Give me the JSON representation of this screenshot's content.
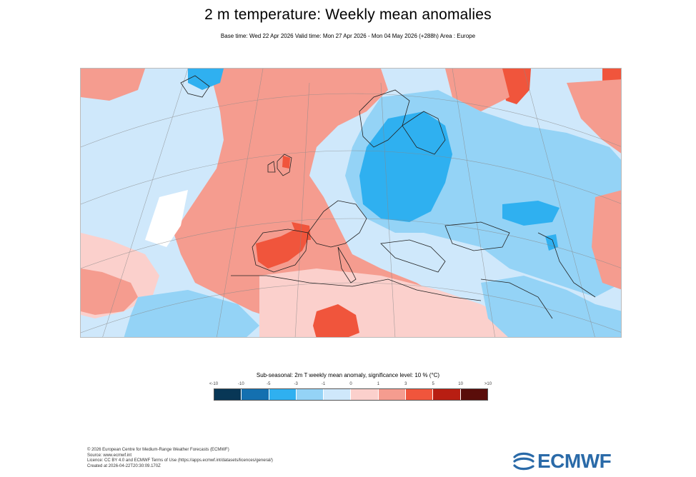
{
  "header": {
    "title": "2 m temperature: Weekly mean anomalies",
    "subtitle": "Base time: Wed 22 Apr 2026 Valid time: Mon 27 Apr 2026 - Mon 04 May 2026 (+288h) Area : Europe"
  },
  "legend": {
    "title": "Sub-seasonal: 2m T weekly mean anomaly, significance level: 10 % (°C)",
    "ticks": [
      "<-10",
      "-10",
      "-5",
      "-3",
      "-1",
      "0",
      "1",
      "3",
      "5",
      "10",
      ">10"
    ],
    "colors": [
      "#083756",
      "#1470b0",
      "#2fb0f0",
      "#94d3f6",
      "#cfe8fb",
      "#fbd0cc",
      "#f59c8f",
      "#f0553c",
      "#b81e12",
      "#5a0d0a"
    ]
  },
  "footer": {
    "lines": [
      "© 2026 European Centre for Medium-Range Weather Forecasts (ECMWF)",
      "Source: www.ecmwf.int",
      "Licence: CC BY 4.0 and ECMWF Terms of Use (https://apps.ecmwf.int/datasets/licences/general/)",
      "Created at 2026-04-22T20:30:09.170Z"
    ]
  },
  "logo": {
    "text": "ECMWF"
  }
}
